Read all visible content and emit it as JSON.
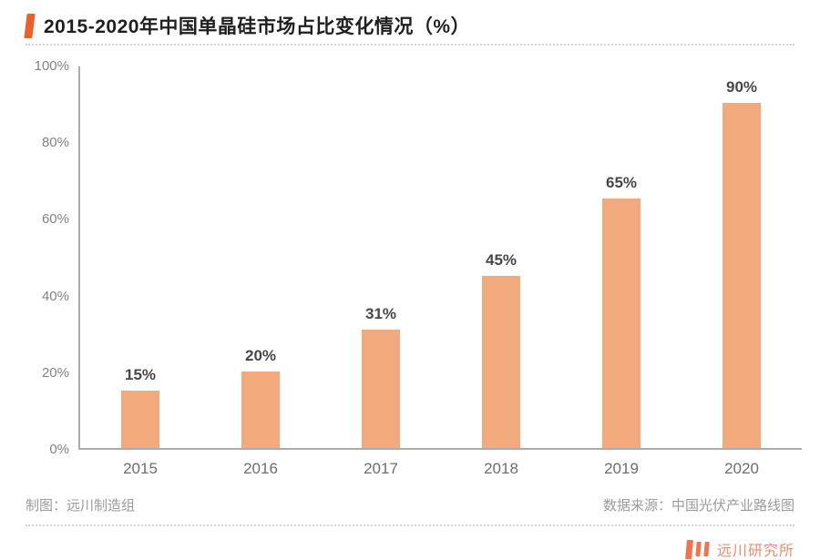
{
  "header": {
    "title": "2015-2020年中国单晶硅市场占比变化情况（%）"
  },
  "chart_data": {
    "type": "bar",
    "title": "2015-2020年中国单晶硅市场占比变化情况（%）",
    "categories": [
      "2015",
      "2016",
      "2017",
      "2018",
      "2019",
      "2020"
    ],
    "values": [
      15,
      20,
      31,
      45,
      65,
      90
    ],
    "data_labels": [
      "15%",
      "20%",
      "31%",
      "45%",
      "65%",
      "90%"
    ],
    "xlabel": "",
    "ylabel": "",
    "ylim": [
      0,
      100
    ],
    "y_ticks": [
      "0%",
      "20%",
      "40%",
      "60%",
      "80%",
      "100%"
    ],
    "grid": false,
    "legend": false,
    "bar_color": "#F2A97B"
  },
  "footer": {
    "credit": "制图：远川制造组",
    "source": "数据来源：中国光伏产业路线图",
    "brand": "远川研究所"
  },
  "colors": {
    "accent": "#E8622A",
    "bar": "#F2A97B",
    "axis": "#ababab",
    "brand_text": "#EA8D72",
    "brand_bars": "#F2744E"
  }
}
